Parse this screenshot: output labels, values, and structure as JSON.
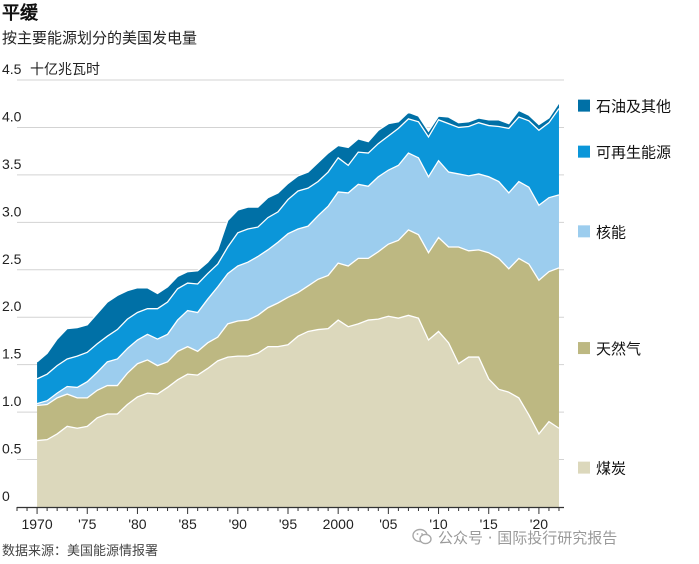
{
  "header": {
    "title": "平缓",
    "subtitle": "按主要能源划分的美国发电量"
  },
  "source": "数据来源：美国能源情报署",
  "watermark": "公众号 · 国际投行研究报告",
  "chart_data": {
    "type": "area",
    "stacked": true,
    "title": "平缓",
    "subtitle": "按主要能源划分的美国发电量",
    "ylabel": "十亿兆瓦时",
    "ylim": [
      0,
      4.5
    ],
    "yticks": [
      0,
      0.5,
      1.0,
      1.5,
      2.0,
      2.5,
      3.0,
      3.5,
      4.0,
      4.5
    ],
    "ytick_labels": [
      "0",
      "0.5",
      "1.0",
      "1.5",
      "2.0",
      "2.5",
      "3.0",
      "3.5",
      "4.0",
      "4.5"
    ],
    "xlim": [
      1968,
      2022.5
    ],
    "xticks": [
      1970,
      1975,
      1980,
      1985,
      1990,
      1995,
      2000,
      2005,
      2010,
      2015,
      2020
    ],
    "xtick_labels": [
      "1970",
      "'75",
      "'80",
      "'85",
      "'90",
      "'95",
      "2000",
      "'05",
      "'10",
      "'15",
      "'20"
    ],
    "grid": true,
    "x": [
      1970,
      1971,
      1972,
      1973,
      1974,
      1975,
      1976,
      1977,
      1978,
      1979,
      1980,
      1981,
      1982,
      1983,
      1984,
      1985,
      1986,
      1987,
      1988,
      1989,
      1990,
      1991,
      1992,
      1993,
      1994,
      1995,
      1996,
      1997,
      1998,
      1999,
      2000,
      2001,
      2002,
      2003,
      2004,
      2005,
      2006,
      2007,
      2008,
      2009,
      2010,
      2011,
      2012,
      2013,
      2014,
      2015,
      2016,
      2017,
      2018,
      2019,
      2020,
      2021,
      2022
    ],
    "series": [
      {
        "name": "煤炭",
        "color": "#dcd8bc",
        "values": [
          0.7,
          0.71,
          0.77,
          0.85,
          0.83,
          0.85,
          0.94,
          0.98,
          0.98,
          1.08,
          1.16,
          1.2,
          1.19,
          1.26,
          1.34,
          1.4,
          1.39,
          1.46,
          1.54,
          1.58,
          1.59,
          1.59,
          1.62,
          1.69,
          1.69,
          1.71,
          1.8,
          1.85,
          1.87,
          1.88,
          1.97,
          1.9,
          1.93,
          1.97,
          1.98,
          2.01,
          1.99,
          2.02,
          1.99,
          1.76,
          1.85,
          1.73,
          1.51,
          1.58,
          1.58,
          1.35,
          1.24,
          1.21,
          1.15,
          0.97,
          0.77,
          0.9,
          0.83
        ]
      },
      {
        "name": "天然气",
        "color": "#bdb882",
        "values": [
          0.37,
          0.37,
          0.38,
          0.34,
          0.32,
          0.3,
          0.29,
          0.3,
          0.3,
          0.33,
          0.35,
          0.35,
          0.3,
          0.27,
          0.3,
          0.29,
          0.25,
          0.27,
          0.25,
          0.35,
          0.37,
          0.38,
          0.4,
          0.41,
          0.46,
          0.5,
          0.46,
          0.48,
          0.53,
          0.56,
          0.6,
          0.64,
          0.69,
          0.65,
          0.71,
          0.76,
          0.82,
          0.9,
          0.88,
          0.92,
          0.99,
          1.01,
          1.23,
          1.12,
          1.13,
          1.33,
          1.38,
          1.3,
          1.47,
          1.59,
          1.62,
          1.58,
          1.69
        ]
      },
      {
        "name": "核能",
        "color": "#9ccdee",
        "values": [
          0.02,
          0.04,
          0.05,
          0.08,
          0.11,
          0.17,
          0.19,
          0.25,
          0.28,
          0.26,
          0.25,
          0.27,
          0.28,
          0.29,
          0.33,
          0.38,
          0.41,
          0.46,
          0.53,
          0.53,
          0.58,
          0.61,
          0.62,
          0.61,
          0.64,
          0.67,
          0.67,
          0.63,
          0.67,
          0.73,
          0.75,
          0.77,
          0.78,
          0.76,
          0.79,
          0.78,
          0.79,
          0.81,
          0.81,
          0.8,
          0.81,
          0.79,
          0.77,
          0.79,
          0.8,
          0.8,
          0.81,
          0.8,
          0.81,
          0.81,
          0.79,
          0.78,
          0.77
        ]
      },
      {
        "name": "可再生能源",
        "color": "#0b96d9",
        "values": [
          0.26,
          0.28,
          0.29,
          0.29,
          0.33,
          0.31,
          0.3,
          0.27,
          0.31,
          0.31,
          0.29,
          0.27,
          0.32,
          0.34,
          0.33,
          0.29,
          0.3,
          0.27,
          0.24,
          0.28,
          0.35,
          0.35,
          0.31,
          0.34,
          0.32,
          0.36,
          0.4,
          0.4,
          0.36,
          0.36,
          0.36,
          0.29,
          0.34,
          0.35,
          0.35,
          0.36,
          0.39,
          0.36,
          0.38,
          0.42,
          0.43,
          0.51,
          0.49,
          0.52,
          0.54,
          0.54,
          0.58,
          0.68,
          0.68,
          0.7,
          0.79,
          0.79,
          0.91
        ]
      },
      {
        "name": "石油及其他",
        "color": "#0070a6",
        "values": [
          0.18,
          0.22,
          0.28,
          0.32,
          0.3,
          0.29,
          0.32,
          0.36,
          0.36,
          0.3,
          0.26,
          0.22,
          0.16,
          0.16,
          0.13,
          0.12,
          0.14,
          0.12,
          0.15,
          0.28,
          0.24,
          0.23,
          0.21,
          0.21,
          0.2,
          0.17,
          0.16,
          0.17,
          0.2,
          0.2,
          0.13,
          0.19,
          0.14,
          0.12,
          0.14,
          0.13,
          0.07,
          0.07,
          0.06,
          0.06,
          0.04,
          0.07,
          0.05,
          0.05,
          0.05,
          0.06,
          0.07,
          0.05,
          0.07,
          0.06,
          0.06,
          0.05,
          0.06
        ]
      }
    ]
  }
}
